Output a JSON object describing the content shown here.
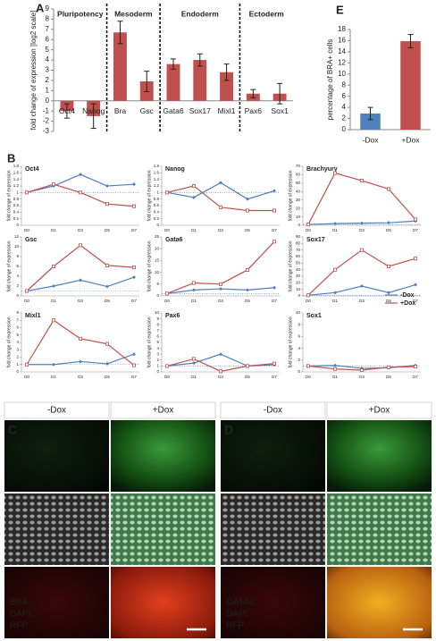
{
  "panel_labels": [
    "A",
    "E",
    "B"
  ],
  "chart_data": [
    {
      "type": "bar",
      "y_label": "fold change of expression [log2 scale]",
      "categories": [
        "Oct4",
        "Nanog",
        "Bra",
        "Gsc",
        "Gata6",
        "Sox17",
        "Mixl1",
        "Pax6",
        "Sox1"
      ],
      "values": [
        -1.0,
        -1.5,
        6.7,
        1.9,
        3.6,
        4.0,
        2.8,
        0.7,
        0.7
      ],
      "errors": [
        0.7,
        1.2,
        1.1,
        1.0,
        0.5,
        0.6,
        0.8,
        0.4,
        1.0
      ],
      "groups": [
        {
          "label": "Pluripotency",
          "n": 2
        },
        {
          "label": "Mesoderm",
          "n": 2
        },
        {
          "label": "Endoderm",
          "n": 3
        },
        {
          "label": "Ectoderm",
          "n": 2
        }
      ],
      "color": "#c0504d",
      "ylim": [
        -3,
        9
      ],
      "yticks": [
        -3,
        -2,
        -1,
        0,
        1,
        2,
        3,
        4,
        5,
        6,
        7,
        8,
        9
      ]
    },
    {
      "type": "bar",
      "y_label": "percentage of BRA+ cells",
      "categories": [
        "-Dox",
        "+Dox"
      ],
      "values": [
        2.9,
        15.9
      ],
      "errors": [
        1.1,
        1.2
      ],
      "colors": [
        "#4f81bd",
        "#c0504d"
      ],
      "ylim": [
        0,
        18
      ],
      "yticks": [
        0,
        2,
        4,
        6,
        8,
        10,
        12,
        14,
        16,
        18
      ]
    },
    {
      "type": "line",
      "title": "Oct4",
      "y_label": "fold change of expression",
      "categories": [
        "D0",
        "D1",
        "D3",
        "D5",
        "D7"
      ],
      "series": [
        {
          "name": "-Dox",
          "color": "#4f81bd",
          "values": [
            1,
            1.2,
            1.55,
            1.2,
            1.25
          ]
        },
        {
          "name": "+Dox",
          "color": "#c0504d",
          "values": [
            1,
            1.25,
            1.0,
            0.65,
            0.58
          ]
        }
      ],
      "refline": 1,
      "ylim": [
        0,
        1.8
      ],
      "yticks": [
        0,
        0.2,
        0.4,
        0.6,
        0.8,
        1,
        1.2,
        1.4,
        1.6,
        1.8
      ]
    },
    {
      "type": "line",
      "title": "Nanog",
      "y_label": "fold change of expression",
      "categories": [
        "D0",
        "D1",
        "D3",
        "D5",
        "D7"
      ],
      "series": [
        {
          "name": "-Dox",
          "color": "#4f81bd",
          "values": [
            1,
            0.85,
            1.3,
            0.8,
            1.05
          ]
        },
        {
          "name": "+Dox",
          "color": "#c0504d",
          "values": [
            1,
            1.2,
            0.55,
            0.45,
            0.45
          ]
        }
      ],
      "refline": 1,
      "ylim": [
        0,
        1.8
      ],
      "yticks": [
        0,
        0.2,
        0.4,
        0.6,
        0.8,
        1,
        1.2,
        1.4,
        1.6,
        1.8
      ]
    },
    {
      "type": "line",
      "title": "Brachyury",
      "y_label": "fold change of expression",
      "categories": [
        "D0",
        "D1",
        "D3",
        "D5",
        "D7"
      ],
      "series": [
        {
          "name": "-Dox",
          "color": "#4f81bd",
          "values": [
            1,
            2,
            2.5,
            3,
            5
          ]
        },
        {
          "name": "+Dox",
          "color": "#c0504d",
          "values": [
            1,
            62,
            53,
            43,
            7
          ]
        }
      ],
      "refline": 1,
      "ylim": [
        0,
        70
      ],
      "yticks": [
        0,
        10,
        20,
        30,
        40,
        50,
        60,
        70
      ]
    },
    {
      "type": "line",
      "title": "Gsc",
      "y_label": "fold change of expression",
      "categories": [
        "D0",
        "D1",
        "D3",
        "D5",
        "D7"
      ],
      "series": [
        {
          "name": "-Dox",
          "color": "#4f81bd",
          "values": [
            1,
            2,
            3.2,
            1.9,
            3.8
          ]
        },
        {
          "name": "+Dox",
          "color": "#c0504d",
          "values": [
            1,
            6,
            10.3,
            6.2,
            5.8
          ]
        }
      ],
      "refline": 1,
      "ylim": [
        0,
        12
      ],
      "yticks": [
        0,
        2,
        4,
        6,
        8,
        10,
        12
      ]
    },
    {
      "type": "line",
      "title": "Gata6",
      "y_label": "fold change of expression",
      "categories": [
        "D0",
        "D1",
        "D3",
        "D5",
        "D7"
      ],
      "series": [
        {
          "name": "-Dox",
          "color": "#4f81bd",
          "values": [
            1,
            2.5,
            3,
            2.5,
            3.5
          ]
        },
        {
          "name": "+Dox",
          "color": "#c0504d",
          "values": [
            1,
            5.5,
            5,
            11,
            23
          ]
        }
      ],
      "refline": 1,
      "ylim": [
        0,
        25
      ],
      "yticks": [
        0,
        5,
        10,
        15,
        20,
        25
      ]
    },
    {
      "type": "line",
      "title": "Sox17",
      "y_label": "fold change of expression",
      "categories": [
        "D0",
        "D1",
        "D3",
        "D5",
        "D7"
      ],
      "series": [
        {
          "name": "-Dox",
          "color": "#4f81bd",
          "values": [
            1,
            5,
            15,
            5,
            17
          ]
        },
        {
          "name": "+Dox",
          "color": "#c0504d",
          "values": [
            1,
            40,
            70,
            45,
            57
          ]
        }
      ],
      "refline": 1,
      "ylim": [
        0,
        90
      ],
      "yticks": [
        0,
        10,
        20,
        30,
        40,
        50,
        60,
        70,
        80,
        90
      ]
    },
    {
      "type": "line",
      "title": "Mixl1",
      "y_label": "fold change of expression",
      "categories": [
        "D0",
        "D1",
        "D3",
        "D5",
        "D7"
      ],
      "series": [
        {
          "name": "-Dox",
          "color": "#4f81bd",
          "values": [
            1,
            1,
            1.4,
            1.1,
            2.4
          ]
        },
        {
          "name": "+Dox",
          "color": "#c0504d",
          "values": [
            1,
            7,
            4.5,
            3.8,
            0.9
          ]
        }
      ],
      "refline": 1,
      "ylim": [
        0,
        8
      ],
      "yticks": [
        0,
        1,
        2,
        3,
        4,
        5,
        6,
        7,
        8
      ]
    },
    {
      "type": "line",
      "title": "Pax6",
      "y_label": "fold change of expression",
      "categories": [
        "D0",
        "D1",
        "D3",
        "D5",
        "D7"
      ],
      "series": [
        {
          "name": "-Dox",
          "color": "#4f81bd",
          "values": [
            1,
            1.5,
            3,
            1,
            1.2
          ]
        },
        {
          "name": "+Dox",
          "color": "#c0504d",
          "values": [
            1,
            2.2,
            0.1,
            1,
            1.4
          ]
        }
      ],
      "refline": 1,
      "ylim": [
        0,
        10
      ],
      "yticks": [
        0,
        1,
        2,
        3,
        4,
        5,
        6,
        7,
        8,
        9,
        10
      ]
    },
    {
      "type": "line",
      "title": "Sox1",
      "y_label": "fold change of expression",
      "categories": [
        "D0",
        "D1",
        "D3",
        "D5",
        "D7"
      ],
      "series": [
        {
          "name": "-Dox",
          "color": "#4f81bd",
          "values": [
            1,
            1.1,
            0.6,
            0.7,
            1.1
          ]
        },
        {
          "name": "+Dox",
          "color": "#c0504d",
          "values": [
            1,
            0.5,
            0.3,
            0.8,
            0.9
          ]
        }
      ],
      "refline": 1,
      "legend": "upper-right",
      "ylim": [
        0,
        10
      ],
      "yticks": [
        0,
        2,
        4,
        6,
        8,
        10
      ]
    }
  ],
  "image_panels": [
    {
      "label": "C",
      "columns": [
        "-Dox",
        "+Dox"
      ],
      "stains": [
        "BRA",
        "DAPI",
        "RFP"
      ]
    },
    {
      "label": "D",
      "columns": [
        "-Dox",
        "+Dox"
      ],
      "stains": [
        "GATA6",
        "DAPI",
        "RFP"
      ]
    }
  ]
}
